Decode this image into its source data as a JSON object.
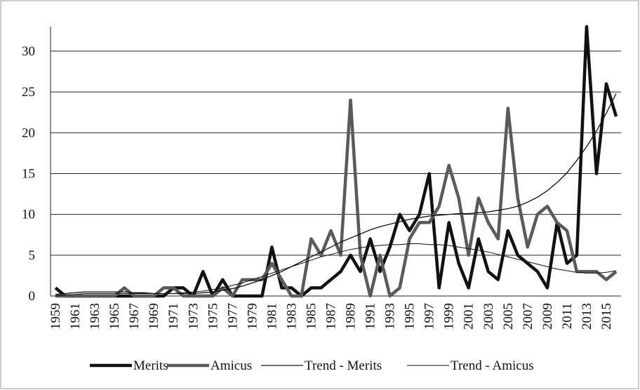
{
  "chart_data": {
    "type": "line",
    "categories": [
      "1959",
      null,
      "1961",
      null,
      "1963",
      null,
      "1965",
      null,
      "1967",
      null,
      "1969",
      null,
      "1971",
      null,
      "1973",
      null,
      "1975",
      null,
      "1977",
      null,
      "1979",
      null,
      "1981",
      null,
      "1983",
      null,
      "1985",
      null,
      "1987",
      null,
      "1989",
      null,
      "1991",
      null,
      "1993",
      null,
      "1995",
      null,
      "1997",
      null,
      "1999",
      null,
      "2001",
      null,
      "2003",
      null,
      "2005",
      null,
      "2007",
      null,
      "2009",
      null,
      "2011",
      null,
      "2013",
      null,
      "2015",
      null
    ],
    "series": [
      {
        "name": "Merits",
        "color": "#111111",
        "width": 4.5,
        "values": [
          1,
          0,
          0,
          0,
          0,
          0,
          0,
          0,
          0,
          0,
          0,
          0,
          1,
          1,
          0,
          3,
          0,
          2,
          0,
          0,
          0,
          0,
          6,
          1,
          1,
          0,
          1,
          1,
          2,
          3,
          5,
          3,
          7,
          3,
          6,
          10,
          8,
          10,
          15,
          1,
          9,
          4,
          1,
          7,
          3,
          2,
          8,
          5,
          4,
          3,
          1,
          9,
          4,
          5,
          33,
          15,
          26,
          22
        ]
      },
      {
        "name": "Amicus",
        "color": "#5a5a5a",
        "width": 4.5,
        "values": [
          0,
          0,
          0,
          0,
          0,
          0,
          0,
          1,
          0,
          0,
          0,
          1,
          1,
          0,
          0,
          0,
          0,
          1,
          0,
          2,
          2,
          2,
          4,
          2,
          0,
          0,
          7,
          5,
          8,
          5,
          24,
          5,
          0,
          5,
          0,
          1,
          7,
          9,
          9,
          11,
          16,
          12,
          5,
          12,
          9,
          7,
          23,
          12,
          6,
          10,
          11,
          9,
          8,
          3,
          3,
          3,
          2,
          3
        ]
      },
      {
        "name": "Trend - Merits",
        "color": "#111111",
        "width": 1.3,
        "values": [
          0.2,
          0.3,
          0.4,
          0.5,
          0.5,
          0.5,
          0.5,
          0.5,
          0.4,
          0.4,
          0.3,
          0.3,
          0.3,
          0.3,
          0.3,
          0.4,
          0.5,
          0.7,
          0.9,
          1.2,
          1.6,
          2.0,
          2.5,
          3.0,
          3.6,
          4.2,
          4.8,
          5.4,
          6.0,
          6.6,
          7.1,
          7.6,
          8.1,
          8.5,
          8.8,
          9.1,
          9.4,
          9.6,
          9.8,
          9.9,
          10.0,
          10.1,
          10.1,
          10.2,
          10.3,
          10.5,
          10.7,
          11.0,
          11.5,
          12.1,
          12.9,
          13.9,
          15.1,
          16.6,
          18.3,
          20.2,
          22.4,
          24.8
        ]
      },
      {
        "name": "Trend - Amicus",
        "color": "#111111",
        "width": 1.0,
        "values": [
          0,
          0.1,
          0.2,
          0.3,
          0.3,
          0.3,
          0.3,
          0.3,
          0.3,
          0.3,
          0.3,
          0.3,
          0.3,
          0.4,
          0.5,
          0.6,
          0.8,
          1.0,
          1.3,
          1.6,
          2.0,
          2.4,
          2.8,
          3.2,
          3.6,
          4.0,
          4.4,
          4.8,
          5.1,
          5.4,
          5.7,
          5.9,
          6.1,
          6.2,
          6.3,
          6.3,
          6.4,
          6.4,
          6.3,
          6.3,
          6.2,
          6.0,
          5.8,
          5.6,
          5.4,
          5.1,
          4.8,
          4.5,
          4.2,
          3.9,
          3.6,
          3.3,
          3.1,
          2.9,
          2.8,
          2.8,
          2.9,
          3.1
        ]
      }
    ],
    "ylim": [
      0,
      33
    ],
    "yticks": [
      0,
      5,
      10,
      15,
      20,
      25,
      30
    ],
    "grid": true,
    "legend": "bottom"
  }
}
